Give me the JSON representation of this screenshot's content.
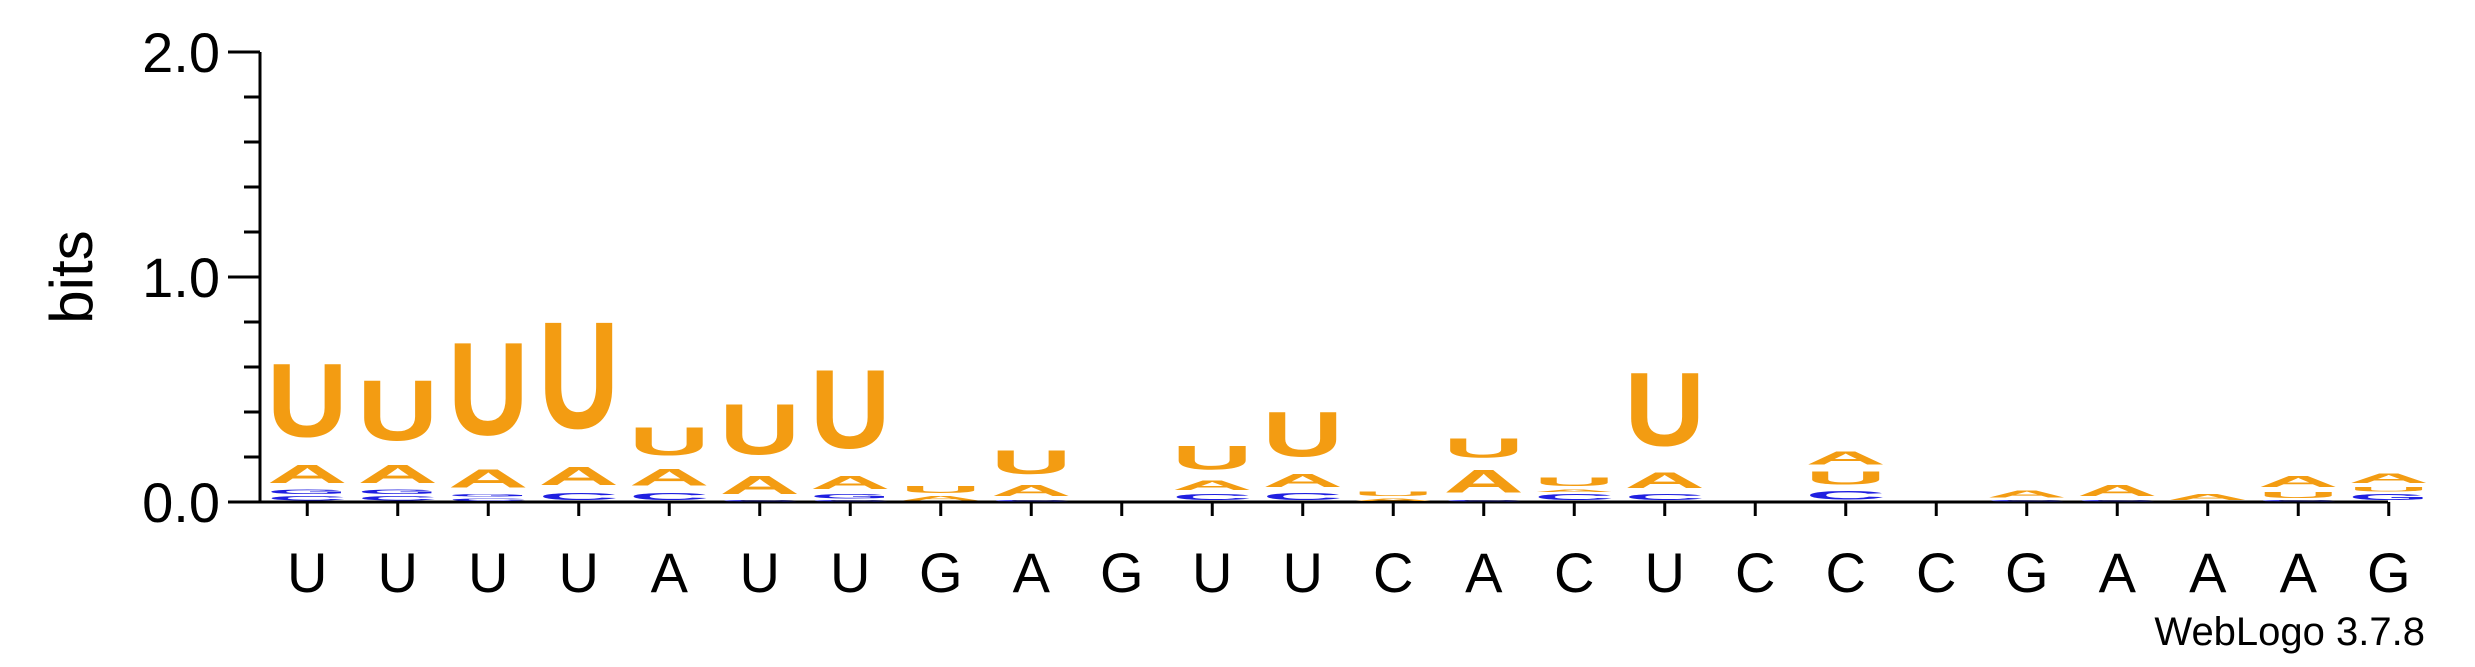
{
  "chart_data": {
    "type": "sequence-logo",
    "ylabel": "bits",
    "ylim": [
      0,
      2.0
    ],
    "y_ticks": [
      {
        "value": 0,
        "label": "0.0"
      },
      {
        "value": 1,
        "label": "1.0"
      },
      {
        "value": 2,
        "label": "2.0"
      }
    ],
    "x_labels": [
      "U",
      "U",
      "U",
      "U",
      "A",
      "U",
      "U",
      "G",
      "A",
      "G",
      "U",
      "U",
      "C",
      "A",
      "C",
      "U",
      "C",
      "C",
      "C",
      "G",
      "A",
      "A",
      "A",
      "G"
    ],
    "colors": {
      "U": "#f39c12",
      "A": "#f39c12",
      "C": "#1f1fe0",
      "G": "#1f1fe0"
    },
    "footer": "WebLogo 3.7.8",
    "columns": [
      {
        "stack": [
          {
            "l": "C",
            "h": 0.03
          },
          {
            "l": "G",
            "h": 0.03
          },
          {
            "l": "A",
            "h": 0.13
          },
          {
            "l": "U",
            "h": 0.52
          }
        ]
      },
      {
        "stack": [
          {
            "l": "C",
            "h": 0.03
          },
          {
            "l": "G",
            "h": 0.03
          },
          {
            "l": "A",
            "h": 0.13
          },
          {
            "l": "U",
            "h": 0.43
          }
        ]
      },
      {
        "stack": [
          {
            "l": "C",
            "h": 0.02
          },
          {
            "l": "G",
            "h": 0.02
          },
          {
            "l": "A",
            "h": 0.13
          },
          {
            "l": "U",
            "h": 0.66
          }
        ]
      },
      {
        "stack": [
          {
            "l": "C",
            "h": 0.05
          },
          {
            "l": "A",
            "h": 0.13
          },
          {
            "l": "U",
            "h": 0.76
          }
        ]
      },
      {
        "stack": [
          {
            "l": "C",
            "h": 0.05
          },
          {
            "l": "A",
            "h": 0.12
          },
          {
            "l": "U",
            "h": 0.2
          }
        ]
      },
      {
        "stack": [
          {
            "l": "C",
            "h": 0.01
          },
          {
            "l": "A",
            "h": 0.13
          },
          {
            "l": "U",
            "h": 0.36
          }
        ]
      },
      {
        "stack": [
          {
            "l": "C",
            "h": 0.01
          },
          {
            "l": "G",
            "h": 0.03
          },
          {
            "l": "A",
            "h": 0.09
          },
          {
            "l": "U",
            "h": 0.56
          }
        ]
      },
      {
        "stack": [
          {
            "l": "A",
            "h": 0.03
          },
          {
            "l": "U",
            "h": 0.05
          }
        ]
      },
      {
        "stack": [
          {
            "l": "C",
            "h": 0.01
          },
          {
            "l": "A",
            "h": 0.08
          },
          {
            "l": "U",
            "h": 0.17
          }
        ]
      },
      {
        "stack": []
      },
      {
        "stack": [
          {
            "l": "C",
            "h": 0.04
          },
          {
            "l": "A",
            "h": 0.07
          },
          {
            "l": "U",
            "h": 0.17
          }
        ]
      },
      {
        "stack": [
          {
            "l": "C",
            "h": 0.05
          },
          {
            "l": "A",
            "h": 0.09
          },
          {
            "l": "U",
            "h": 0.32
          }
        ]
      },
      {
        "stack": [
          {
            "l": "A",
            "h": 0.02
          },
          {
            "l": "U",
            "h": 0.03
          }
        ]
      },
      {
        "stack": [
          {
            "l": "C",
            "h": 0.01
          },
          {
            "l": "A",
            "h": 0.16
          },
          {
            "l": "U",
            "h": 0.14
          }
        ]
      },
      {
        "stack": [
          {
            "l": "C",
            "h": 0.04
          },
          {
            "l": "A",
            "h": 0.02
          },
          {
            "l": "U",
            "h": 0.06
          }
        ]
      },
      {
        "stack": [
          {
            "l": "C",
            "h": 0.04
          },
          {
            "l": "A",
            "h": 0.11
          },
          {
            "l": "U",
            "h": 0.52
          }
        ]
      },
      {
        "stack": []
      },
      {
        "stack": [
          {
            "l": "C",
            "h": 0.06
          },
          {
            "l": "U",
            "h": 0.09
          },
          {
            "l": "A",
            "h": 0.09
          }
        ]
      },
      {
        "stack": []
      },
      {
        "stack": [
          {
            "l": "C",
            "h": 0.01
          },
          {
            "l": "A",
            "h": 0.05
          }
        ]
      },
      {
        "stack": [
          {
            "l": "C",
            "h": 0.01
          },
          {
            "l": "A",
            "h": 0.08
          }
        ]
      },
      {
        "stack": [
          {
            "l": "A",
            "h": 0.04
          }
        ]
      },
      {
        "stack": [
          {
            "l": "C",
            "h": 0.01
          },
          {
            "l": "U",
            "h": 0.04
          },
          {
            "l": "A",
            "h": 0.08
          }
        ]
      },
      {
        "stack": [
          {
            "l": "G",
            "h": 0.04
          },
          {
            "l": "U",
            "h": 0.03
          },
          {
            "l": "A",
            "h": 0.07
          }
        ]
      }
    ]
  }
}
